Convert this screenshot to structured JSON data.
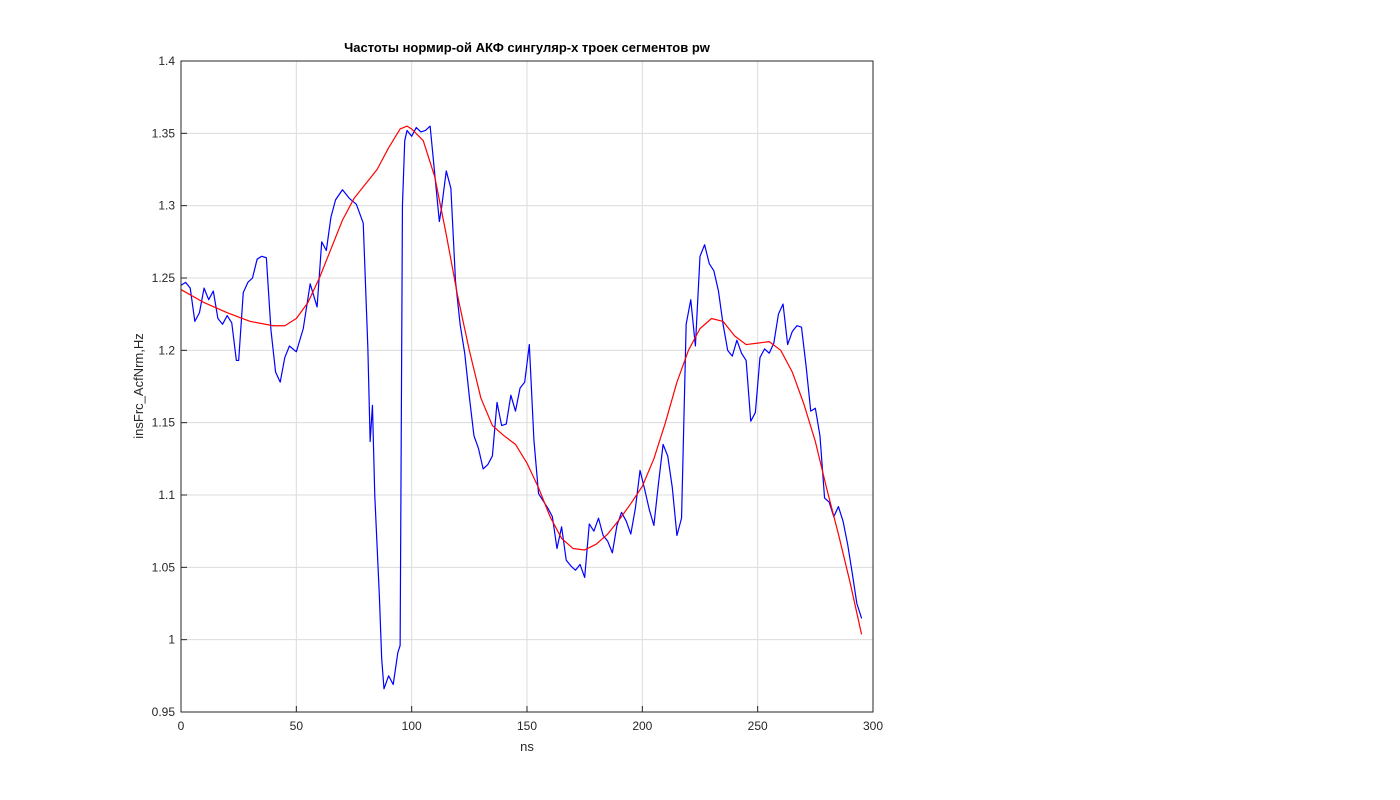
{
  "chart_data": {
    "type": "line",
    "title": "Частоты нормир-ой АКФ сингуляр-х троек сегментов pw",
    "xlabel": "ns",
    "ylabel": "insFrc_AcfNrm,Hz",
    "xlim": [
      0,
      300
    ],
    "ylim": [
      0.95,
      1.4
    ],
    "xticks": [
      0,
      50,
      100,
      150,
      200,
      250,
      300
    ],
    "yticks": [
      0.95,
      1.0,
      1.05,
      1.1,
      1.15,
      1.2,
      1.25,
      1.3,
      1.35,
      1.4
    ],
    "ytick_labels": [
      "0.95",
      "1",
      "1.05",
      "1.1",
      "1.15",
      "1.2",
      "1.25",
      "1.3",
      "1.35",
      "1.4"
    ],
    "grid": true,
    "series": [
      {
        "color": "#0000ff",
        "x": [
          0,
          2,
          4,
          6,
          8,
          10,
          12,
          14,
          16,
          18,
          20,
          22,
          24,
          25,
          27,
          29,
          31,
          33,
          35,
          37,
          39,
          41,
          43,
          45,
          47,
          50,
          53,
          56,
          59,
          61,
          63,
          65,
          67,
          70,
          73,
          76,
          79,
          81,
          82,
          83,
          84,
          86,
          87,
          88,
          90,
          92,
          94,
          95,
          96,
          97,
          98,
          100,
          102,
          104,
          106,
          108,
          110,
          112,
          113,
          115,
          117,
          119,
          121,
          123,
          125,
          127,
          129,
          131,
          133,
          135,
          137,
          139,
          141,
          143,
          145,
          147,
          149,
          151,
          153,
          155,
          157,
          159,
          161,
          163,
          165,
          167,
          169,
          171,
          173,
          175,
          177,
          179,
          181,
          183,
          185,
          187,
          189,
          191,
          193,
          195,
          197,
          199,
          201,
          203,
          205,
          207,
          209,
          211,
          213,
          215,
          217,
          219,
          221,
          223,
          225,
          227,
          229,
          231,
          233,
          235,
          237,
          239,
          241,
          243,
          245,
          247,
          249,
          251,
          253,
          255,
          257,
          259,
          261,
          263,
          265,
          267,
          269,
          271,
          273,
          275,
          277,
          279,
          281,
          283,
          285,
          287,
          289,
          291,
          293,
          295
        ],
        "y": [
          1.245,
          1.247,
          1.243,
          1.22,
          1.226,
          1.243,
          1.235,
          1.241,
          1.222,
          1.218,
          1.224,
          1.219,
          1.193,
          1.193,
          1.24,
          1.247,
          1.25,
          1.263,
          1.265,
          1.264,
          1.214,
          1.185,
          1.178,
          1.195,
          1.203,
          1.199,
          1.215,
          1.246,
          1.23,
          1.275,
          1.269,
          1.292,
          1.304,
          1.311,
          1.305,
          1.301,
          1.288,
          1.202,
          1.137,
          1.162,
          1.1,
          1.03,
          0.987,
          0.966,
          0.975,
          0.969,
          0.991,
          0.996,
          1.3,
          1.345,
          1.352,
          1.348,
          1.354,
          1.351,
          1.352,
          1.355,
          1.322,
          1.289,
          1.299,
          1.324,
          1.312,
          1.248,
          1.218,
          1.198,
          1.168,
          1.141,
          1.132,
          1.118,
          1.121,
          1.127,
          1.164,
          1.148,
          1.149,
          1.169,
          1.158,
          1.174,
          1.178,
          1.204,
          1.138,
          1.101,
          1.096,
          1.091,
          1.085,
          1.063,
          1.078,
          1.055,
          1.051,
          1.048,
          1.052,
          1.043,
          1.08,
          1.075,
          1.084,
          1.072,
          1.068,
          1.06,
          1.079,
          1.088,
          1.082,
          1.073,
          1.091,
          1.117,
          1.104,
          1.09,
          1.079,
          1.108,
          1.135,
          1.127,
          1.105,
          1.072,
          1.084,
          1.218,
          1.235,
          1.203,
          1.265,
          1.273,
          1.26,
          1.255,
          1.241,
          1.218,
          1.2,
          1.196,
          1.207,
          1.198,
          1.193,
          1.151,
          1.157,
          1.195,
          1.201,
          1.198,
          1.205,
          1.225,
          1.232,
          1.204,
          1.213,
          1.217,
          1.216,
          1.189,
          1.158,
          1.16,
          1.141,
          1.098,
          1.095,
          1.085,
          1.092,
          1.082,
          1.066,
          1.046,
          1.025,
          1.015
        ]
      },
      {
        "color": "#ff0000",
        "x": [
          0,
          10,
          20,
          30,
          40,
          45,
          50,
          55,
          60,
          65,
          70,
          75,
          80,
          85,
          90,
          95,
          98,
          100,
          105,
          110,
          115,
          120,
          125,
          130,
          135,
          140,
          145,
          150,
          155,
          160,
          165,
          170,
          175,
          180,
          185,
          190,
          195,
          200,
          205,
          210,
          215,
          220,
          225,
          230,
          235,
          240,
          245,
          250,
          255,
          260,
          265,
          270,
          275,
          280,
          285,
          290,
          295
        ],
        "y": [
          1.242,
          1.233,
          1.226,
          1.22,
          1.217,
          1.217,
          1.222,
          1.233,
          1.25,
          1.27,
          1.29,
          1.305,
          1.315,
          1.325,
          1.34,
          1.353,
          1.355,
          1.353,
          1.345,
          1.32,
          1.28,
          1.237,
          1.2,
          1.167,
          1.148,
          1.141,
          1.135,
          1.122,
          1.105,
          1.085,
          1.07,
          1.063,
          1.062,
          1.066,
          1.073,
          1.083,
          1.094,
          1.106,
          1.125,
          1.15,
          1.178,
          1.2,
          1.215,
          1.222,
          1.22,
          1.21,
          1.204,
          1.205,
          1.206,
          1.2,
          1.185,
          1.163,
          1.137,
          1.104,
          1.073,
          1.04,
          1.004
        ]
      }
    ]
  }
}
